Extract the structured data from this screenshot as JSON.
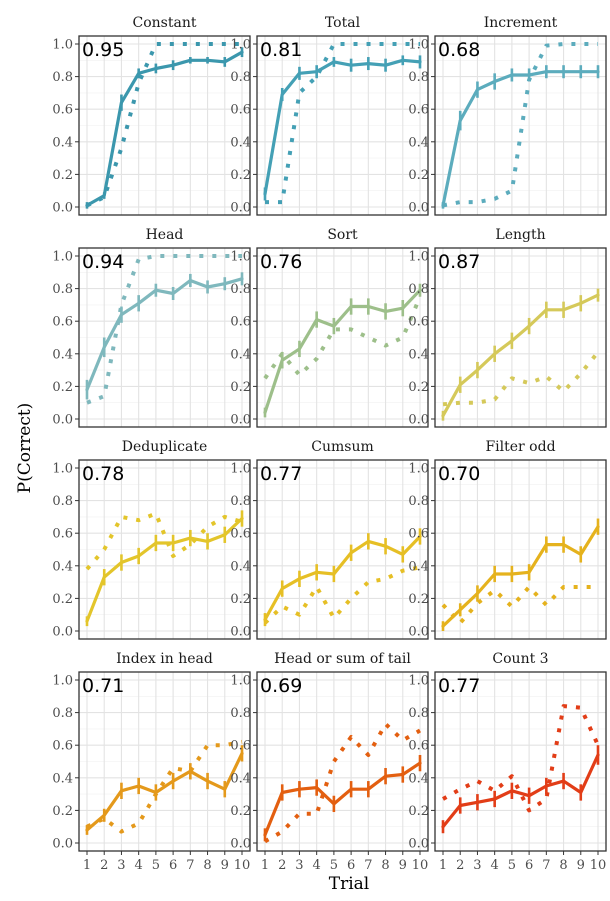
{
  "chart_data": {
    "type": "line",
    "xlabel": "Trial",
    "ylabel": "P(Correct)",
    "x": [
      1,
      2,
      3,
      4,
      5,
      6,
      7,
      8,
      9,
      10
    ],
    "xticks": [
      "1",
      "2",
      "3",
      "4",
      "5",
      "6",
      "7",
      "8",
      "9",
      "10"
    ],
    "ylim": [
      0,
      1
    ],
    "yticks": [
      "0.0",
      "0.2",
      "0.4",
      "0.6",
      "0.8",
      "1.0"
    ],
    "grid": true,
    "legend": "none",
    "panels": [
      {
        "title": "Constant",
        "corner_value": "0.95",
        "color": "#3b97ad",
        "solid": [
          0.01,
          0.07,
          0.64,
          0.82,
          0.85,
          0.87,
          0.9,
          0.9,
          0.89,
          0.95
        ],
        "solid_err": [
          0.02,
          0.02,
          0.05,
          0.03,
          0.03,
          0.03,
          0.02,
          0.02,
          0.03,
          0.03
        ],
        "dotted": [
          0.01,
          0.06,
          0.36,
          0.76,
          1.0,
          1.0,
          1.0,
          1.0,
          1.0,
          1.0
        ]
      },
      {
        "title": "Total",
        "corner_value": "0.81",
        "color": "#44a0b5",
        "solid": [
          0.08,
          0.69,
          0.82,
          0.83,
          0.89,
          0.87,
          0.88,
          0.87,
          0.9,
          0.89
        ],
        "solid_err": [
          0.04,
          0.04,
          0.04,
          0.04,
          0.03,
          0.04,
          0.04,
          0.04,
          0.03,
          0.04
        ],
        "dotted": [
          0.03,
          0.03,
          0.7,
          0.8,
          1.0,
          1.0,
          1.0,
          1.0,
          1.0,
          1.0
        ]
      },
      {
        "title": "Increment",
        "corner_value": "0.68",
        "color": "#5cacbd",
        "solid": [
          0.01,
          0.53,
          0.72,
          0.77,
          0.81,
          0.81,
          0.83,
          0.83,
          0.83,
          0.83
        ],
        "solid_err": [
          0.02,
          0.06,
          0.05,
          0.05,
          0.04,
          0.04,
          0.04,
          0.04,
          0.04,
          0.04
        ],
        "dotted": [
          0.01,
          0.03,
          0.03,
          0.05,
          0.1,
          0.78,
          0.99,
          1.0,
          1.0,
          1.0
        ]
      },
      {
        "title": "Head",
        "corner_value": "0.94",
        "color": "#7fb8bd",
        "solid": [
          0.18,
          0.44,
          0.64,
          0.71,
          0.79,
          0.77,
          0.85,
          0.81,
          0.83,
          0.86
        ],
        "solid_err": [
          0.06,
          0.06,
          0.05,
          0.05,
          0.04,
          0.04,
          0.04,
          0.04,
          0.04,
          0.04
        ],
        "dotted": [
          0.1,
          0.14,
          0.7,
          0.98,
          1.0,
          1.0,
          1.0,
          1.0,
          1.0,
          1.0
        ]
      },
      {
        "title": "Sort",
        "corner_value": "0.76",
        "color": "#9dbf8a",
        "solid": [
          0.04,
          0.36,
          0.43,
          0.61,
          0.57,
          0.69,
          0.69,
          0.66,
          0.68,
          0.79
        ],
        "solid_err": [
          0.03,
          0.05,
          0.05,
          0.05,
          0.05,
          0.05,
          0.05,
          0.05,
          0.05,
          0.04
        ],
        "dotted": [
          0.25,
          0.4,
          0.27,
          0.37,
          0.55,
          0.55,
          0.5,
          0.45,
          0.5,
          0.75
        ]
      },
      {
        "title": "Length",
        "corner_value": "0.87",
        "color": "#d5c95a",
        "solid": [
          0.02,
          0.21,
          0.3,
          0.4,
          0.48,
          0.57,
          0.67,
          0.67,
          0.71,
          0.76
        ],
        "solid_err": [
          0.03,
          0.05,
          0.05,
          0.05,
          0.05,
          0.05,
          0.05,
          0.05,
          0.05,
          0.04
        ],
        "dotted": [
          0.09,
          0.1,
          0.1,
          0.12,
          0.25,
          0.22,
          0.26,
          0.17,
          0.28,
          0.41
        ]
      },
      {
        "title": "Deduplicate",
        "corner_value": "0.78",
        "color": "#e3c52b",
        "solid": [
          0.06,
          0.33,
          0.42,
          0.46,
          0.54,
          0.54,
          0.57,
          0.55,
          0.59,
          0.69
        ],
        "solid_err": [
          0.03,
          0.05,
          0.05,
          0.05,
          0.05,
          0.05,
          0.05,
          0.05,
          0.05,
          0.05
        ],
        "dotted": [
          0.38,
          0.5,
          0.7,
          0.68,
          0.72,
          0.46,
          0.53,
          0.64,
          0.7,
          0.67
        ]
      },
      {
        "title": "Cumsum",
        "corner_value": "0.77",
        "color": "#e6bf25",
        "solid": [
          0.07,
          0.26,
          0.32,
          0.36,
          0.35,
          0.48,
          0.55,
          0.52,
          0.47,
          0.58
        ],
        "solid_err": [
          0.04,
          0.05,
          0.05,
          0.05,
          0.05,
          0.05,
          0.05,
          0.05,
          0.05,
          0.05
        ],
        "dotted": [
          0.05,
          0.15,
          0.1,
          0.27,
          0.08,
          0.2,
          0.3,
          0.32,
          0.37,
          0.39
        ]
      },
      {
        "title": "Filter odd",
        "corner_value": "0.70",
        "color": "#e5b21d",
        "solid": [
          0.03,
          0.13,
          0.23,
          0.35,
          0.35,
          0.36,
          0.53,
          0.53,
          0.47,
          0.64
        ],
        "solid_err": [
          0.03,
          0.04,
          0.05,
          0.05,
          0.05,
          0.05,
          0.05,
          0.05,
          0.05,
          0.05
        ],
        "dotted": [
          0.16,
          0.05,
          0.17,
          0.25,
          0.15,
          0.27,
          0.16,
          0.27,
          0.27,
          0.27
        ]
      },
      {
        "title": "Index in head",
        "corner_value": "0.71",
        "color": "#e4991b",
        "solid": [
          0.08,
          0.17,
          0.32,
          0.35,
          0.31,
          0.38,
          0.44,
          0.38,
          0.33,
          0.55
        ],
        "solid_err": [
          0.03,
          0.04,
          0.05,
          0.05,
          0.05,
          0.05,
          0.05,
          0.05,
          0.05,
          0.05
        ],
        "dotted": [
          0.1,
          0.15,
          0.07,
          0.12,
          0.3,
          0.46,
          0.44,
          0.6,
          0.6,
          0.62
        ]
      },
      {
        "title": "Head or sum of tail",
        "corner_value": "0.69",
        "color": "#e35f10",
        "solid": [
          0.05,
          0.31,
          0.33,
          0.34,
          0.24,
          0.33,
          0.33,
          0.41,
          0.42,
          0.49
        ],
        "solid_err": [
          0.04,
          0.05,
          0.05,
          0.05,
          0.05,
          0.05,
          0.05,
          0.05,
          0.05,
          0.05
        ],
        "dotted": [
          0.01,
          0.07,
          0.18,
          0.18,
          0.5,
          0.65,
          0.54,
          0.73,
          0.63,
          0.69
        ]
      },
      {
        "title": "Count 3",
        "corner_value": "0.77",
        "color": "#e23d17",
        "solid": [
          0.1,
          0.23,
          0.25,
          0.27,
          0.32,
          0.29,
          0.35,
          0.38,
          0.31,
          0.54
        ],
        "solid_err": [
          0.04,
          0.05,
          0.05,
          0.05,
          0.05,
          0.05,
          0.05,
          0.05,
          0.05,
          0.06
        ],
        "dotted": [
          0.27,
          0.33,
          0.38,
          0.32,
          0.41,
          0.2,
          0.27,
          0.84,
          0.83,
          0.6
        ]
      }
    ]
  }
}
